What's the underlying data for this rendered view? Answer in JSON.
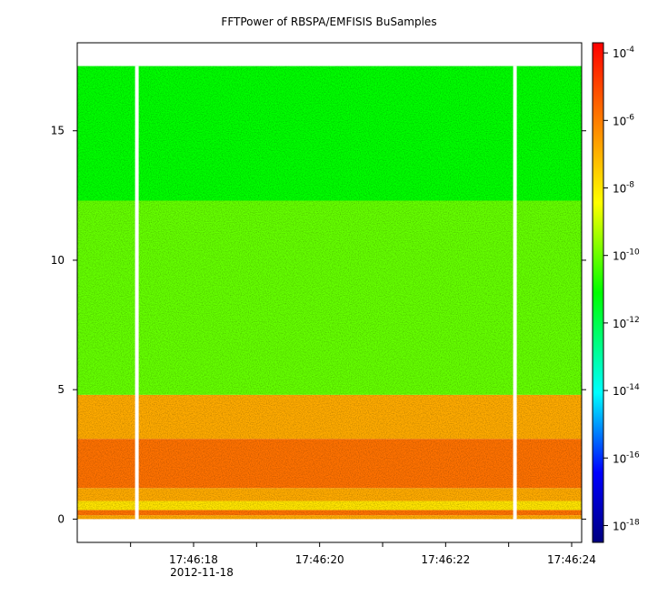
{
  "chart_data": {
    "type": "heatmap",
    "title": "FFTPower of RBSPA/EMFISIS  BuSamples",
    "xlabel": "",
    "ylabel": "",
    "x_date_label": "2012-11-18",
    "x_ticks": [
      {
        "time": "17:46:17",
        "label": ""
      },
      {
        "time": "17:46:18",
        "label": "17:46:18"
      },
      {
        "time": "17:46:19",
        "label": ""
      },
      {
        "time": "17:46:20",
        "label": "17:46:20"
      },
      {
        "time": "17:46:21",
        "label": ""
      },
      {
        "time": "17:46:22",
        "label": "17:46:22"
      },
      {
        "time": "17:46:23",
        "label": ""
      },
      {
        "time": "17:46:24",
        "label": "17:46:24"
      }
    ],
    "y_ticks": [
      0,
      5,
      10,
      15
    ],
    "ylim": [
      -0.9,
      18.4
    ],
    "data_ylim": [
      0,
      17.5
    ],
    "data_gaps_time": [
      "17:46:17.1",
      "17:46:23.1"
    ],
    "colorbar": {
      "scale": "log",
      "range": [
        1e-18,
        0.0001
      ],
      "ticks": [
        {
          "value": 1e-18,
          "base": "10",
          "exp": "-18"
        },
        {
          "value": 1e-16,
          "base": "10",
          "exp": "-16"
        },
        {
          "value": 1e-14,
          "base": "10",
          "exp": "-14"
        },
        {
          "value": 1e-12,
          "base": "10",
          "exp": "-12"
        },
        {
          "value": 1e-10,
          "base": "10",
          "exp": "-10"
        },
        {
          "value": 1e-08,
          "base": "10",
          "exp": "-8"
        },
        {
          "value": 1e-06,
          "base": "10",
          "exp": "-6"
        },
        {
          "value": 0.0001,
          "base": "10",
          "exp": "-4"
        }
      ],
      "colors": [
        "#000080",
        "#0000ff",
        "#00ffff",
        "#00ff00",
        "#ffff00",
        "#ff8000",
        "#ff0000"
      ]
    },
    "bands": [
      {
        "y_range": [
          0,
          0.15
        ],
        "power": 1e-07
      },
      {
        "y_range": [
          0.15,
          0.35
        ],
        "power": 1e-06
      },
      {
        "y_range": [
          0.35,
          0.7
        ],
        "power": 1e-08
      },
      {
        "y_range": [
          0.7,
          1.2
        ],
        "power": 1e-07
      },
      {
        "y_range": [
          1.2,
          3.1
        ],
        "power": 1e-06
      },
      {
        "y_range": [
          3.1,
          4.8
        ],
        "power": 1e-07
      },
      {
        "y_range": [
          4.8,
          12.3
        ],
        "power": 1e-10
      },
      {
        "y_range": [
          12.3,
          17.5
        ],
        "power": 1e-11
      }
    ]
  }
}
